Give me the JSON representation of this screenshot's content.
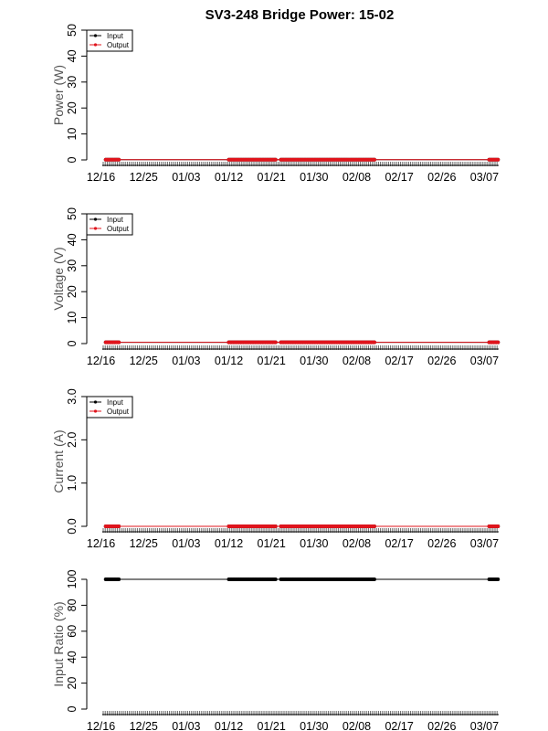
{
  "title": "SV3-248 Bridge Power: 15-02",
  "colors": {
    "input": "#000000",
    "output": "#e0141c",
    "axis": "#000000",
    "tickband": "#999999"
  },
  "chart_data": [
    {
      "type": "line",
      "ylabel": "Power (W)",
      "ylim": [
        0,
        50
      ],
      "yticks": [
        "0",
        "10",
        "20",
        "30",
        "40",
        "50"
      ],
      "xlim": [
        "2014-12-13",
        "2015-03-10"
      ],
      "xticks": [
        "12/16",
        "12/25",
        "01/03",
        "01/12",
        "01/21",
        "01/30",
        "02/08",
        "02/17",
        "02/26",
        "03/07"
      ],
      "legend": {
        "position": "top-left",
        "entries": [
          "Input",
          "Output"
        ]
      },
      "series": [
        {
          "name": "Input",
          "segments": [
            [
              "2014-12-17",
              "2014-12-20"
            ],
            [
              "2015-01-12",
              "2015-01-22"
            ],
            [
              "2015-01-23",
              "2015-02-12"
            ],
            [
              "2015-03-08",
              "2015-03-10"
            ]
          ],
          "level": 0.1
        },
        {
          "name": "Output",
          "segments": [
            [
              "2014-12-17",
              "2014-12-20"
            ],
            [
              "2015-01-12",
              "2015-01-22"
            ],
            [
              "2015-01-23",
              "2015-02-12"
            ],
            [
              "2015-03-08",
              "2015-03-10"
            ]
          ],
          "level": 0.1
        }
      ]
    },
    {
      "type": "line",
      "ylabel": "Voltage (V)",
      "ylim": [
        0,
        50
      ],
      "yticks": [
        "0",
        "10",
        "20",
        "30",
        "40",
        "50"
      ],
      "xlim": [
        "2014-12-13",
        "2015-03-10"
      ],
      "xticks": [
        "12/16",
        "12/25",
        "01/03",
        "01/12",
        "01/21",
        "01/30",
        "02/08",
        "02/17",
        "02/26",
        "03/07"
      ],
      "legend": {
        "position": "top-left",
        "entries": [
          "Input",
          "Output"
        ]
      },
      "series": [
        {
          "name": "Input",
          "segments": [
            [
              "2014-12-17",
              "2014-12-20"
            ],
            [
              "2015-01-12",
              "2015-01-22"
            ],
            [
              "2015-01-23",
              "2015-02-12"
            ],
            [
              "2015-03-08",
              "2015-03-10"
            ]
          ],
          "level": 0.5
        },
        {
          "name": "Output",
          "segments": [
            [
              "2014-12-17",
              "2014-12-20"
            ],
            [
              "2015-01-12",
              "2015-01-22"
            ],
            [
              "2015-01-23",
              "2015-02-12"
            ],
            [
              "2015-03-08",
              "2015-03-10"
            ]
          ],
          "level": 0.5
        }
      ]
    },
    {
      "type": "line",
      "ylabel": "Current (A)",
      "ylim": [
        0,
        3.0
      ],
      "yticks": [
        "0.0",
        "1.0",
        "2.0",
        "3.0"
      ],
      "xlim": [
        "2014-12-13",
        "2015-03-10"
      ],
      "xticks": [
        "12/16",
        "12/25",
        "01/03",
        "01/12",
        "01/21",
        "01/30",
        "02/08",
        "02/17",
        "02/26",
        "03/07"
      ],
      "legend": {
        "position": "top-left",
        "entries": [
          "Input",
          "Output"
        ]
      },
      "series": [
        {
          "name": "Input",
          "segments": [
            [
              "2014-12-17",
              "2014-12-20"
            ],
            [
              "2015-01-12",
              "2015-01-22"
            ],
            [
              "2015-01-23",
              "2015-02-12"
            ],
            [
              "2015-03-08",
              "2015-03-10"
            ]
          ],
          "level": 0.0
        },
        {
          "name": "Output",
          "segments": [
            [
              "2014-12-17",
              "2014-12-20"
            ],
            [
              "2015-01-12",
              "2015-01-22"
            ],
            [
              "2015-01-23",
              "2015-02-12"
            ],
            [
              "2015-03-08",
              "2015-03-10"
            ]
          ],
          "level": 0.0
        }
      ]
    },
    {
      "type": "line",
      "ylabel": "Input Ratio (%)",
      "ylim": [
        0,
        100
      ],
      "yticks": [
        "0",
        "20",
        "40",
        "60",
        "80",
        "100"
      ],
      "xlim": [
        "2014-12-13",
        "2015-03-10"
      ],
      "xticks": [
        "12/16",
        "12/25",
        "01/03",
        "01/12",
        "01/21",
        "01/30",
        "02/08",
        "02/17",
        "02/26",
        "03/07"
      ],
      "series": [
        {
          "name": "",
          "segments": [
            [
              "2014-12-17",
              "2014-12-20"
            ],
            [
              "2015-01-12",
              "2015-01-22"
            ],
            [
              "2015-01-23",
              "2015-02-12"
            ],
            [
              "2015-03-08",
              "2015-03-10"
            ]
          ],
          "level": 100
        }
      ]
    }
  ]
}
